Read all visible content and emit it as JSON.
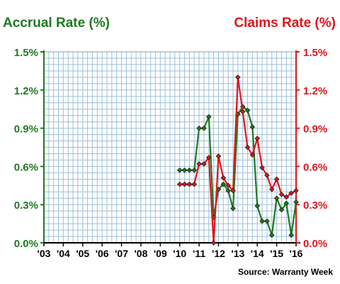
{
  "chart_data": {
    "type": "line",
    "left_axis_title": "Accrual Rate (%)",
    "right_axis_title": "Claims Rate (%)",
    "source": "Source: Warranty Week",
    "x_ticks": [
      "'03",
      "'04",
      "'05",
      "'06",
      "'07",
      "'08",
      "'09",
      "'10",
      "'11",
      "'12",
      "'13",
      "'14",
      "'15",
      "'16"
    ],
    "xlim": [
      2003,
      2016
    ],
    "ylim": [
      0,
      1.5
    ],
    "y_ticks": [
      "0.0%",
      "0.3%",
      "0.6%",
      "0.9%",
      "1.2%",
      "1.5%"
    ],
    "grid": true,
    "colors": {
      "accrual": "#1f7a1f",
      "claims": "#e0151b",
      "grid": "#9bbfd8"
    },
    "series": [
      {
        "key": "accrual",
        "axis": "left",
        "x": [
          2010.0,
          2010.25,
          2010.5,
          2010.75,
          2011.0,
          2011.25,
          2011.5,
          2011.75,
          2012.0,
          2012.25,
          2012.5,
          2012.75,
          2013.0,
          2013.25,
          2013.5,
          2013.75,
          2014.0,
          2014.25,
          2014.5,
          2014.75,
          2015.0,
          2015.25,
          2015.5,
          2015.75,
          2016.0
        ],
        "y": [
          0.57,
          0.57,
          0.57,
          0.57,
          0.9,
          0.9,
          0.99,
          0.2,
          0.42,
          0.46,
          0.41,
          0.27,
          1.01,
          1.07,
          1.04,
          0.91,
          0.29,
          0.17,
          0.17,
          0.06,
          0.35,
          0.26,
          0.31,
          0.06,
          0.32
        ]
      },
      {
        "key": "claims",
        "axis": "right",
        "x": [
          2010.0,
          2010.25,
          2010.5,
          2010.75,
          2011.0,
          2011.25,
          2011.5,
          2011.75,
          2012.0,
          2012.25,
          2012.5,
          2012.75,
          2013.0,
          2013.25,
          2013.5,
          2013.75,
          2014.0,
          2014.25,
          2014.5,
          2014.75,
          2015.0,
          2015.25,
          2015.5,
          2015.75,
          2016.0
        ],
        "y": [
          0.46,
          0.46,
          0.46,
          0.46,
          0.62,
          0.62,
          0.67,
          0.0,
          0.68,
          0.51,
          0.45,
          0.41,
          1.3,
          1.03,
          0.75,
          0.69,
          0.82,
          0.59,
          0.53,
          0.42,
          0.5,
          0.38,
          0.36,
          0.39,
          0.41
        ]
      }
    ]
  }
}
